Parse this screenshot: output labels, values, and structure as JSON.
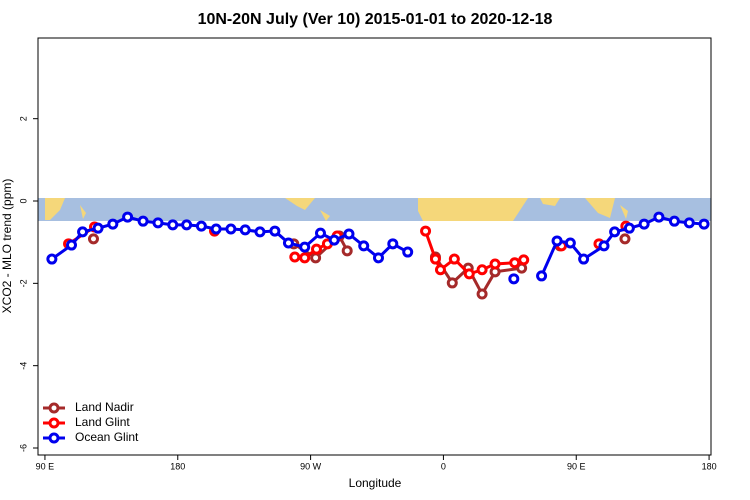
{
  "chart_data": {
    "type": "line",
    "title": "10N-20N July (Ver 10)   2015-01-01 to 2020-12-18",
    "x_label": "Longitude",
    "y_label": "XCO2 - MLO trend (ppm)",
    "xlim": [
      85.3,
      541.3
    ],
    "ylim": [
      -6.17,
      3.96
    ],
    "xticks": [
      {
        "value": 90,
        "label": "90 E"
      },
      180,
      {
        "value": 270,
        "label": "90 W"
      },
      {
        "value": 360,
        "label": "0"
      },
      {
        "value": 450,
        "label": "90 E"
      },
      {
        "value": 540,
        "label": "180"
      }
    ],
    "yticks": [
      -6,
      -4,
      -2,
      0,
      2
    ],
    "legend": "bottom-left",
    "series": [
      {
        "name": "Land Nadir",
        "color": "#a52a2a",
        "x": [
          122.9,
          null,
          258.6,
          273.4,
          289.5,
          294.8,
          null,
          354.6,
          366,
          376.8,
          386.2,
          395,
          413,
          null,
          439,
          null,
          483
        ],
        "values": [
          -0.92,
          null,
          -1.04,
          -1.38,
          -0.85,
          -1.21,
          null,
          -1.36,
          -1.99,
          -1.63,
          -2.26,
          -1.72,
          -1.63,
          null,
          -1.09,
          null,
          -0.92
        ]
      },
      {
        "name": "Land Glint",
        "color": "#ff0000",
        "x": [
          106,
          123.6,
          null,
          204.9,
          null,
          259.3,
          266,
          274,
          281.4,
          288,
          null,
          347.9,
          354.6,
          358,
          367.4,
          377.5,
          386.2,
          395,
          408.3,
          414.4,
          null,
          440,
          null,
          465.4,
          null,
          483.6
        ],
        "values": [
          -1.04,
          -0.63,
          null,
          -0.73,
          null,
          -1.36,
          -1.38,
          -1.17,
          -1.04,
          -0.85,
          null,
          -0.73,
          -1.41,
          -1.67,
          -1.41,
          -1.77,
          -1.67,
          -1.53,
          -1.5,
          -1.43,
          null,
          -1.09,
          null,
          -1.04,
          null,
          -0.61
        ]
      },
      {
        "name": "Ocean Glint",
        "color": "#0000ee",
        "x": [
          94.7,
          108,
          115.5,
          126,
          136,
          146,
          156.5,
          166.6,
          176.6,
          186,
          196,
          206,
          216,
          225.7,
          235.7,
          245.8,
          255,
          266,
          276.7,
          286,
          296,
          306,
          316,
          325.7,
          335.8,
          null,
          407.7,
          null,
          426.5,
          437,
          446,
          455,
          468.8,
          476,
          486,
          496,
          506,
          516.5,
          526.6,
          536.6
        ],
        "values": [
          -1.41,
          -1.07,
          -0.75,
          -0.66,
          -0.56,
          -0.39,
          -0.49,
          -0.53,
          -0.58,
          -0.58,
          -0.61,
          -0.68,
          -0.68,
          -0.7,
          -0.75,
          -0.73,
          -1.02,
          -1.12,
          -0.78,
          -0.95,
          -0.8,
          -1.09,
          -1.38,
          -1.04,
          -1.24,
          null,
          -1.89,
          null,
          -1.82,
          -0.97,
          -1.02,
          -1.41,
          -1.09,
          -0.75,
          -0.66,
          -0.56,
          -0.39,
          -0.49,
          -0.53,
          -0.56
        ]
      }
    ]
  }
}
